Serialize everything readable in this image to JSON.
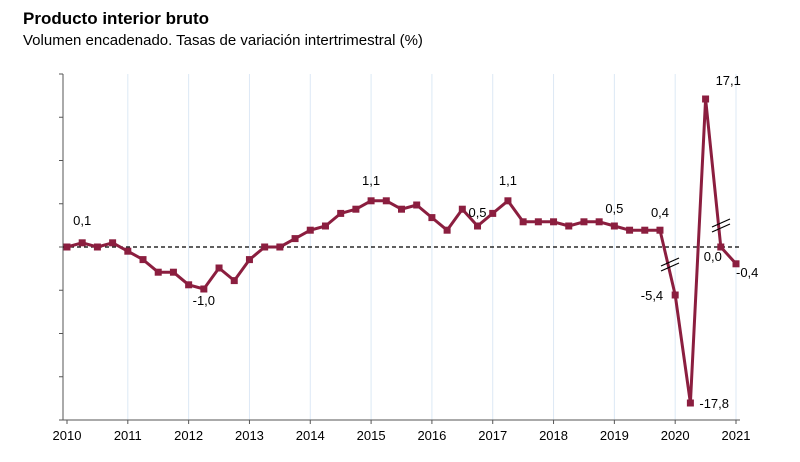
{
  "title": "Producto interior bruto",
  "subtitle": "Volumen encadenado. Tasas de variación intertrimestral (%)",
  "colors": {
    "series": "#8B1E3F",
    "grid": "#dce8f5",
    "axis": "#555555",
    "zero_line": "#000000"
  },
  "chart_data": {
    "type": "line",
    "title": "Producto interior bruto",
    "subtitle": "Volumen encadenado. Tasas de variación intertrimestral (%)",
    "x_tick_labels": [
      "2010",
      "2011",
      "2012",
      "2013",
      "2014",
      "2015",
      "2016",
      "2017",
      "2018",
      "2019",
      "2020",
      "2021"
    ],
    "zero_line": "dashed",
    "axis_break": "broken y-axis for the 2020 values beyond the regular range",
    "series": [
      {
        "values": [
          {
            "x": "2010 T1",
            "y": 0.0
          },
          {
            "x": "2010 T2",
            "y": 0.1
          },
          {
            "x": "2010 T3",
            "y": 0.0
          },
          {
            "x": "2010 T4",
            "y": 0.1
          },
          {
            "x": "2011 T1",
            "y": -0.1
          },
          {
            "x": "2011 T2",
            "y": -0.3
          },
          {
            "x": "2011 T3",
            "y": -0.6
          },
          {
            "x": "2011 T4",
            "y": -0.6
          },
          {
            "x": "2012 T1",
            "y": -0.9
          },
          {
            "x": "2012 T2",
            "y": -1.0
          },
          {
            "x": "2012 T3",
            "y": -0.5
          },
          {
            "x": "2012 T4",
            "y": -0.8
          },
          {
            "x": "2013 T1",
            "y": -0.3
          },
          {
            "x": "2013 T2",
            "y": 0.0
          },
          {
            "x": "2013 T3",
            "y": 0.0
          },
          {
            "x": "2013 T4",
            "y": 0.2
          },
          {
            "x": "2014 T1",
            "y": 0.4
          },
          {
            "x": "2014 T2",
            "y": 0.5
          },
          {
            "x": "2014 T3",
            "y": 0.8
          },
          {
            "x": "2014 T4",
            "y": 0.9
          },
          {
            "x": "2015 T1",
            "y": 1.1
          },
          {
            "x": "2015 T2",
            "y": 1.1
          },
          {
            "x": "2015 T3",
            "y": 0.9
          },
          {
            "x": "2015 T4",
            "y": 1.0
          },
          {
            "x": "2016 T1",
            "y": 0.7
          },
          {
            "x": "2016 T2",
            "y": 0.4
          },
          {
            "x": "2016 T3",
            "y": 0.9
          },
          {
            "x": "2016 T4",
            "y": 0.5
          },
          {
            "x": "2017 T1",
            "y": 0.8
          },
          {
            "x": "2017 T2",
            "y": 1.1
          },
          {
            "x": "2017 T3",
            "y": 0.6
          },
          {
            "x": "2017 T4",
            "y": 0.6
          },
          {
            "x": "2018 T1",
            "y": 0.6
          },
          {
            "x": "2018 T2",
            "y": 0.5
          },
          {
            "x": "2018 T3",
            "y": 0.6
          },
          {
            "x": "2018 T4",
            "y": 0.6
          },
          {
            "x": "2019 T1",
            "y": 0.5
          },
          {
            "x": "2019 T2",
            "y": 0.4
          },
          {
            "x": "2019 T3",
            "y": 0.4
          },
          {
            "x": "2019 T4",
            "y": 0.4
          },
          {
            "x": "2020 T1",
            "y": -5.4
          },
          {
            "x": "2020 T2",
            "y": -17.8
          },
          {
            "x": "2020 T3",
            "y": 17.1
          },
          {
            "x": "2020 T4",
            "y": 0.0
          },
          {
            "x": "2021 T1",
            "y": -0.4
          }
        ]
      }
    ],
    "data_labels": [
      {
        "index": 1,
        "text": "0,1"
      },
      {
        "index": 9,
        "text": "-1,0"
      },
      {
        "index": 20,
        "text": "1,1"
      },
      {
        "index": 27,
        "text": "0,5"
      },
      {
        "index": 29,
        "text": "1,1"
      },
      {
        "index": 36,
        "text": "0,5"
      },
      {
        "index": 39,
        "text": "0,4"
      },
      {
        "index": 40,
        "text": "-5,4"
      },
      {
        "index": 41,
        "text": "-17,8"
      },
      {
        "index": 42,
        "text": "17,1"
      },
      {
        "index": 43,
        "text": "0,0"
      },
      {
        "index": 44,
        "text": "-0,4"
      }
    ],
    "grid": "vertical gridlines at each year"
  }
}
